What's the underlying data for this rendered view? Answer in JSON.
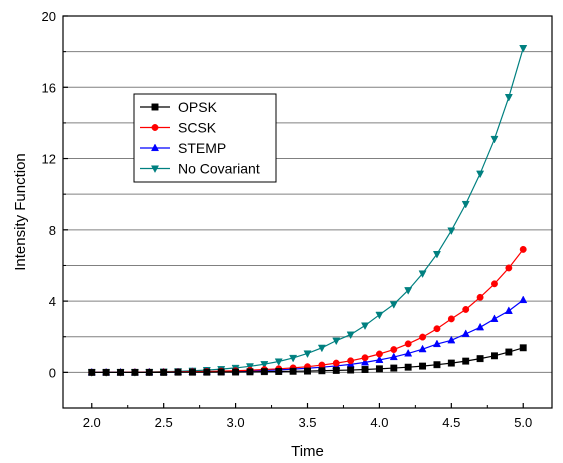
{
  "chart_data": {
    "type": "line",
    "title": "",
    "xlabel": "Time",
    "ylabel": "Intensity Function",
    "xlim": [
      1.8,
      5.2
    ],
    "ylim": [
      -2,
      20
    ],
    "xticks": [
      "2.0",
      "2.5",
      "3.0",
      "3.5",
      "4.0",
      "4.5",
      "5.0"
    ],
    "yticks": [
      "0",
      "4",
      "8",
      "12",
      "16",
      "20"
    ],
    "grid": "horizontal",
    "legend_position": "top-left",
    "x": [
      2.0,
      2.1,
      2.2,
      2.3,
      2.4,
      2.5,
      2.6,
      2.7,
      2.8,
      2.9,
      3.0,
      3.1,
      3.2,
      3.3,
      3.4,
      3.5,
      3.6,
      3.7,
      3.8,
      3.9,
      4.0,
      4.1,
      4.2,
      4.3,
      4.4,
      4.5,
      4.6,
      4.7,
      4.8,
      4.9,
      5.0
    ],
    "series": [
      {
        "name": "OPSK",
        "color": "#000000",
        "marker": "square",
        "values": [
          0.0,
          0.0,
          0.0,
          0.0,
          0.0,
          0.0,
          0.01,
          0.01,
          0.01,
          0.02,
          0.02,
          0.03,
          0.04,
          0.05,
          0.06,
          0.07,
          0.09,
          0.11,
          0.13,
          0.16,
          0.2,
          0.24,
          0.29,
          0.35,
          0.43,
          0.52,
          0.63,
          0.77,
          0.93,
          1.14,
          1.38
        ]
      },
      {
        "name": "SCSK",
        "color": "#ff0000",
        "marker": "circle",
        "values": [
          0.0,
          0.0,
          0.0,
          0.01,
          0.01,
          0.02,
          0.03,
          0.04,
          0.05,
          0.07,
          0.09,
          0.12,
          0.16,
          0.2,
          0.25,
          0.32,
          0.41,
          0.52,
          0.65,
          0.82,
          1.03,
          1.28,
          1.6,
          1.98,
          2.45,
          3.0,
          3.53,
          4.21,
          4.97,
          5.86,
          6.9
        ]
      },
      {
        "name": "STEMP",
        "color": "#0000ff",
        "marker": "triangle-up",
        "values": [
          0.0,
          0.0,
          0.0,
          0.0,
          0.01,
          0.01,
          0.02,
          0.03,
          0.04,
          0.05,
          0.07,
          0.09,
          0.11,
          0.14,
          0.18,
          0.23,
          0.29,
          0.36,
          0.45,
          0.56,
          0.7,
          0.86,
          1.06,
          1.3,
          1.59,
          1.8,
          2.16,
          2.53,
          3.0,
          3.45,
          4.06
        ]
      },
      {
        "name": "No Covariant",
        "color": "#008080",
        "marker": "triangle-down",
        "values": [
          0.0,
          0.0,
          0.01,
          0.01,
          0.02,
          0.04,
          0.06,
          0.09,
          0.13,
          0.18,
          0.25,
          0.34,
          0.46,
          0.61,
          0.81,
          1.06,
          1.38,
          1.78,
          2.12,
          2.63,
          3.23,
          3.82,
          4.61,
          5.55,
          6.64,
          7.96,
          9.45,
          11.15,
          13.1,
          15.45,
          18.2
        ]
      }
    ]
  }
}
